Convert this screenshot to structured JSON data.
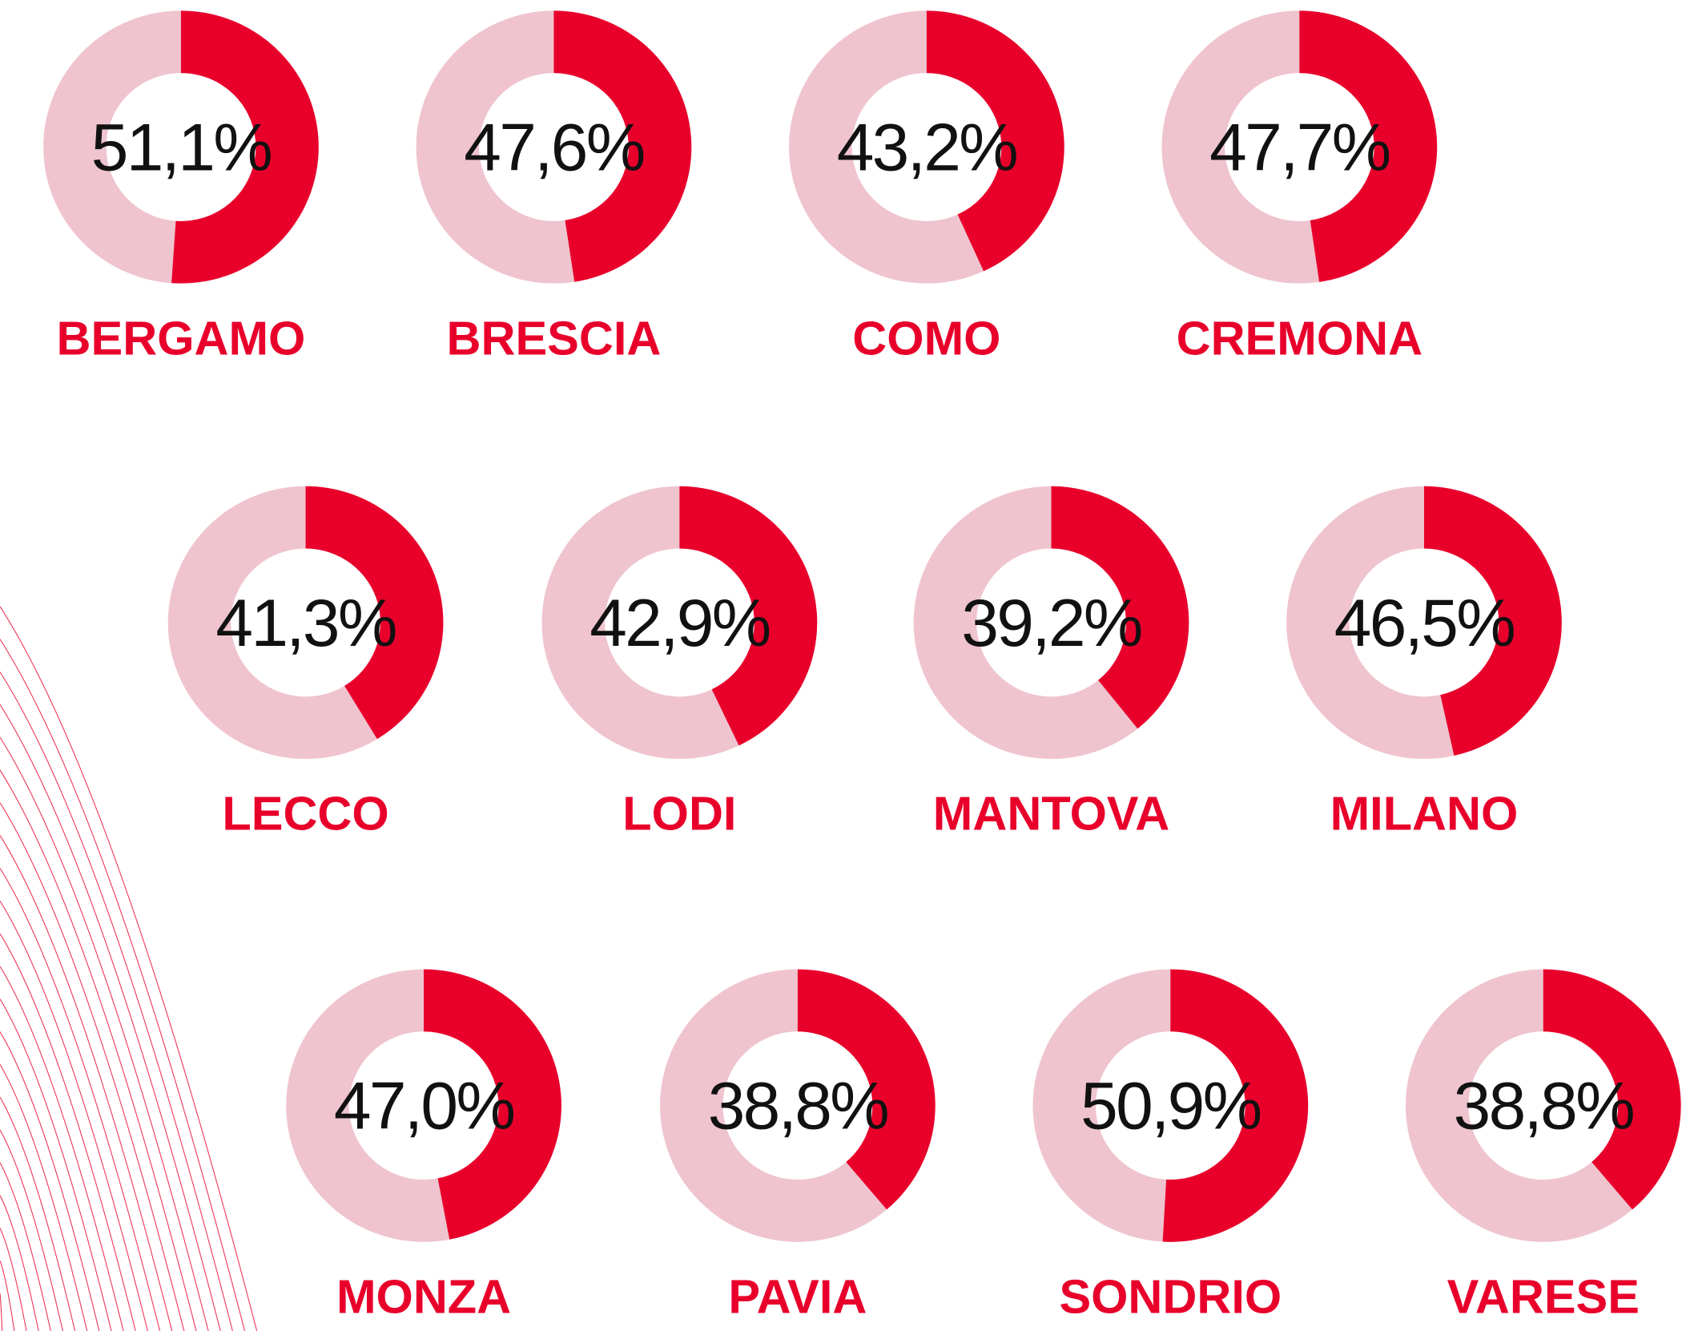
{
  "chart_data": [
    {
      "type": "donut",
      "title": "BERGAMO",
      "values": [
        51.1
      ],
      "value_labels": [
        "51,1%"
      ],
      "colors": [
        "#e8002b",
        "#efc4cf"
      ]
    },
    {
      "type": "donut",
      "title": "BRESCIA",
      "values": [
        47.6
      ],
      "value_labels": [
        "47,6%"
      ],
      "colors": [
        "#e8002b",
        "#efc4cf"
      ]
    },
    {
      "type": "donut",
      "title": "COMO",
      "values": [
        43.2
      ],
      "value_labels": [
        "43,2%"
      ],
      "colors": [
        "#e8002b",
        "#efc4cf"
      ]
    },
    {
      "type": "donut",
      "title": "CREMONA",
      "values": [
        47.7
      ],
      "value_labels": [
        "47,7%"
      ],
      "colors": [
        "#e8002b",
        "#efc4cf"
      ]
    },
    {
      "type": "donut",
      "title": "LECCO",
      "values": [
        41.3
      ],
      "value_labels": [
        "41,3%"
      ],
      "colors": [
        "#e8002b",
        "#efc4cf"
      ]
    },
    {
      "type": "donut",
      "title": "LODI",
      "values": [
        42.9
      ],
      "value_labels": [
        "42,9%"
      ],
      "colors": [
        "#e8002b",
        "#efc4cf"
      ]
    },
    {
      "type": "donut",
      "title": "MANTOVA",
      "values": [
        39.2
      ],
      "value_labels": [
        "39,2%"
      ],
      "colors": [
        "#e8002b",
        "#efc4cf"
      ]
    },
    {
      "type": "donut",
      "title": "MILANO",
      "values": [
        46.5
      ],
      "value_labels": [
        "46,5%"
      ],
      "colors": [
        "#e8002b",
        "#efc4cf"
      ]
    },
    {
      "type": "donut",
      "title": "MONZA",
      "values": [
        47.0
      ],
      "value_labels": [
        "47,0%"
      ],
      "colors": [
        "#e8002b",
        "#efc4cf"
      ]
    },
    {
      "type": "donut",
      "title": "PAVIA",
      "values": [
        38.8
      ],
      "value_labels": [
        "38,8%"
      ],
      "colors": [
        "#e8002b",
        "#efc4cf"
      ]
    },
    {
      "type": "donut",
      "title": "SONDRIO",
      "values": [
        50.9
      ],
      "value_labels": [
        "50,9%"
      ],
      "colors": [
        "#e8002b",
        "#efc4cf"
      ]
    },
    {
      "type": "donut",
      "title": "VARESE",
      "values": [
        38.8
      ],
      "value_labels": [
        "38,8%"
      ],
      "colors": [
        "#e8002b",
        "#efc4cf"
      ]
    }
  ]
}
